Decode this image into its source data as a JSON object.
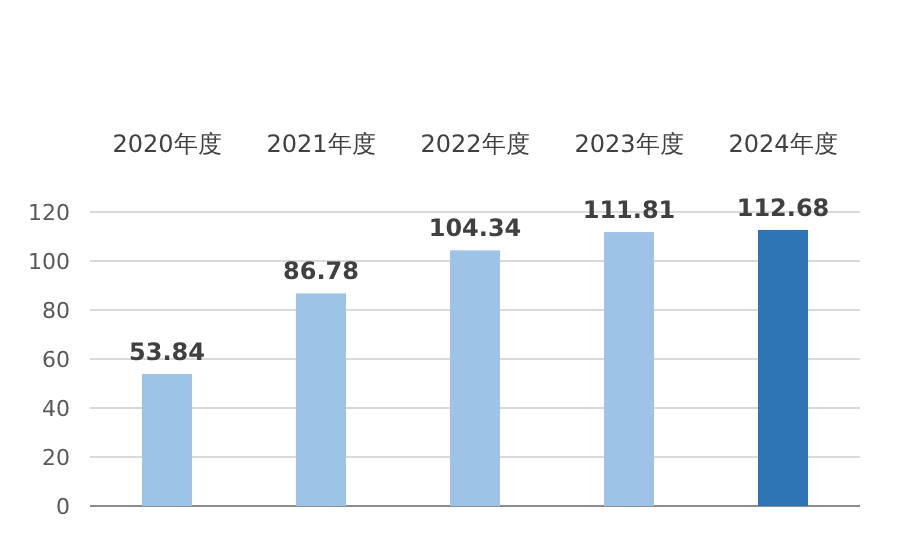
{
  "chart_data": {
    "type": "bar",
    "categories": [
      "2020年度",
      "2021年度",
      "2022年度",
      "2023年度",
      "2024年度"
    ],
    "values": [
      53.84,
      86.78,
      104.34,
      111.81,
      112.68
    ],
    "colors": [
      "#9dc3e6",
      "#9dc3e6",
      "#9dc3e6",
      "#9dc3e6",
      "#2e75b6"
    ],
    "ylim": [
      0,
      120
    ],
    "yticks": [
      0,
      20,
      40,
      60,
      80,
      100,
      120
    ],
    "grid": "y",
    "data_labels": true
  }
}
